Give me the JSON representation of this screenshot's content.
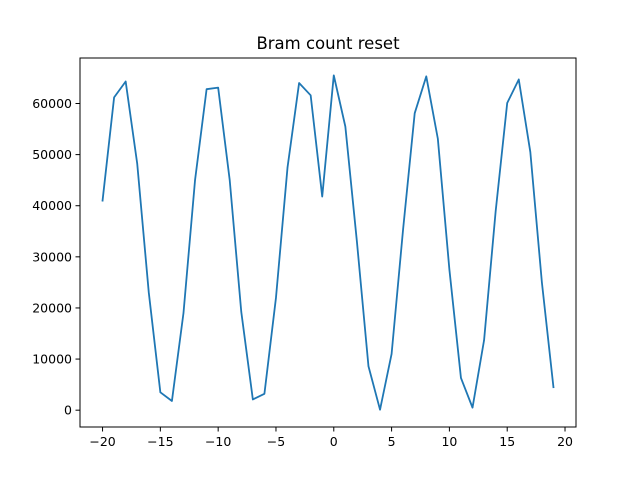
{
  "chart_data": {
    "type": "line",
    "title": "Bram count reset",
    "xlabel": "",
    "ylabel": "",
    "xlim": [
      -21.95,
      20.95
    ],
    "ylim": [
      -3290,
      68900
    ],
    "xticks": [
      -20,
      -15,
      -10,
      -5,
      0,
      5,
      10,
      15,
      20
    ],
    "yticks": [
      0,
      10000,
      20000,
      30000,
      40000,
      50000,
      60000
    ],
    "grid": false,
    "legend": "none",
    "series": [
      {
        "color": "#1f77b4",
        "x": [
          -20,
          -19,
          -18,
          -17,
          -16,
          -15,
          -14,
          -13,
          -12,
          -11,
          -10,
          -9,
          -8,
          -7,
          -6,
          -5,
          -4,
          -3,
          -2,
          -1,
          0,
          1,
          2,
          3,
          4,
          5,
          6,
          7,
          8,
          9,
          10,
          11,
          12,
          13,
          14,
          15,
          16,
          17,
          18,
          19
        ],
        "y": [
          41000,
          61200,
          64300,
          48200,
          23000,
          3500,
          1800,
          19000,
          45000,
          62800,
          63100,
          45000,
          19200,
          2100,
          3200,
          22000,
          47500,
          64000,
          61600,
          41800,
          65500,
          55500,
          33000,
          8600,
          100,
          11000,
          35500,
          58100,
          65300,
          53100,
          27500,
          6300,
          500,
          13700,
          38900,
          60100,
          64700,
          50500,
          25000,
          4500
        ]
      }
    ]
  }
}
